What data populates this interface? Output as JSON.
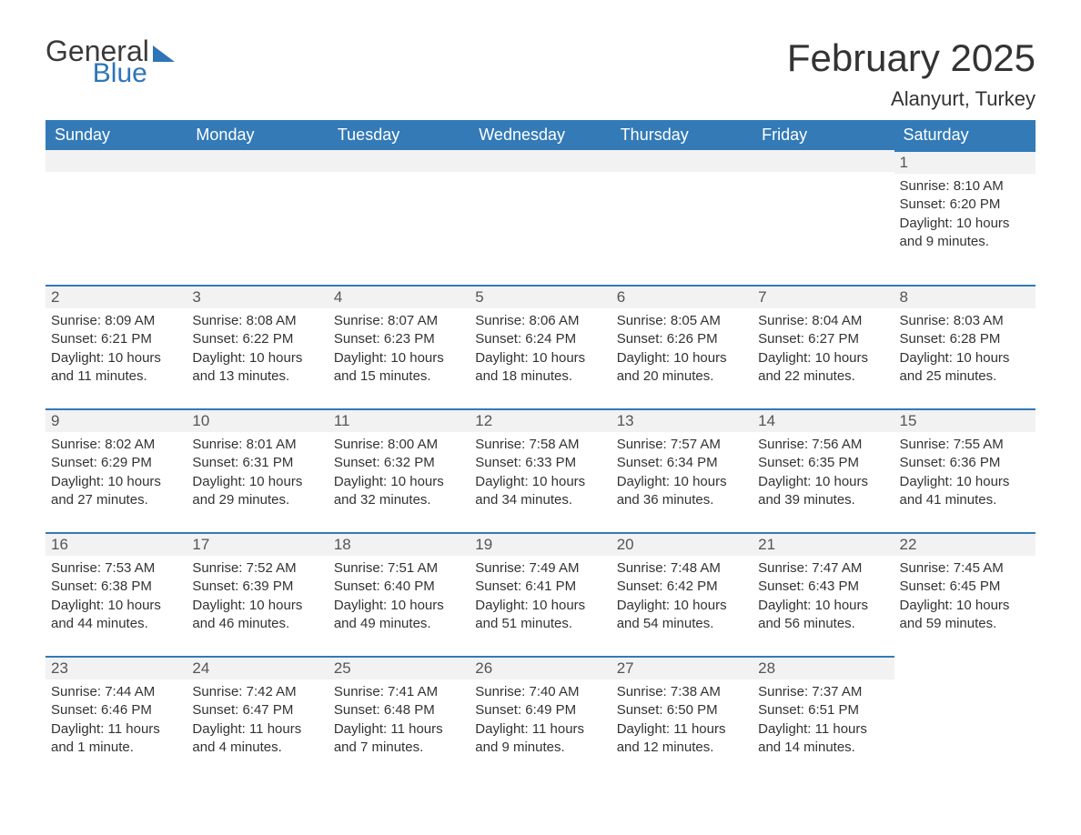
{
  "branding": {
    "logo_general": "General",
    "logo_blue": "Blue"
  },
  "header": {
    "month_title": "February 2025",
    "location": "Alanyurt, Turkey"
  },
  "style": {
    "header_bg": "#337ab7",
    "header_text": "#ffffff",
    "daynum_bg": "#f2f2f2",
    "row_border": "#337ab7",
    "body_text": "#333333",
    "logo_gray": "#3a3a3a",
    "logo_blue": "#2e75b6",
    "month_title_fontsize": 42,
    "location_fontsize": 22,
    "day_fontsize": 15
  },
  "calendar": {
    "day_names": [
      "Sunday",
      "Monday",
      "Tuesday",
      "Wednesday",
      "Thursday",
      "Friday",
      "Saturday"
    ],
    "weeks": [
      [
        null,
        null,
        null,
        null,
        null,
        null,
        {
          "n": "1",
          "sunrise": "Sunrise: 8:10 AM",
          "sunset": "Sunset: 6:20 PM",
          "daylight": "Daylight: 10 hours and 9 minutes."
        }
      ],
      [
        {
          "n": "2",
          "sunrise": "Sunrise: 8:09 AM",
          "sunset": "Sunset: 6:21 PM",
          "daylight": "Daylight: 10 hours and 11 minutes."
        },
        {
          "n": "3",
          "sunrise": "Sunrise: 8:08 AM",
          "sunset": "Sunset: 6:22 PM",
          "daylight": "Daylight: 10 hours and 13 minutes."
        },
        {
          "n": "4",
          "sunrise": "Sunrise: 8:07 AM",
          "sunset": "Sunset: 6:23 PM",
          "daylight": "Daylight: 10 hours and 15 minutes."
        },
        {
          "n": "5",
          "sunrise": "Sunrise: 8:06 AM",
          "sunset": "Sunset: 6:24 PM",
          "daylight": "Daylight: 10 hours and 18 minutes."
        },
        {
          "n": "6",
          "sunrise": "Sunrise: 8:05 AM",
          "sunset": "Sunset: 6:26 PM",
          "daylight": "Daylight: 10 hours and 20 minutes."
        },
        {
          "n": "7",
          "sunrise": "Sunrise: 8:04 AM",
          "sunset": "Sunset: 6:27 PM",
          "daylight": "Daylight: 10 hours and 22 minutes."
        },
        {
          "n": "8",
          "sunrise": "Sunrise: 8:03 AM",
          "sunset": "Sunset: 6:28 PM",
          "daylight": "Daylight: 10 hours and 25 minutes."
        }
      ],
      [
        {
          "n": "9",
          "sunrise": "Sunrise: 8:02 AM",
          "sunset": "Sunset: 6:29 PM",
          "daylight": "Daylight: 10 hours and 27 minutes."
        },
        {
          "n": "10",
          "sunrise": "Sunrise: 8:01 AM",
          "sunset": "Sunset: 6:31 PM",
          "daylight": "Daylight: 10 hours and 29 minutes."
        },
        {
          "n": "11",
          "sunrise": "Sunrise: 8:00 AM",
          "sunset": "Sunset: 6:32 PM",
          "daylight": "Daylight: 10 hours and 32 minutes."
        },
        {
          "n": "12",
          "sunrise": "Sunrise: 7:58 AM",
          "sunset": "Sunset: 6:33 PM",
          "daylight": "Daylight: 10 hours and 34 minutes."
        },
        {
          "n": "13",
          "sunrise": "Sunrise: 7:57 AM",
          "sunset": "Sunset: 6:34 PM",
          "daylight": "Daylight: 10 hours and 36 minutes."
        },
        {
          "n": "14",
          "sunrise": "Sunrise: 7:56 AM",
          "sunset": "Sunset: 6:35 PM",
          "daylight": "Daylight: 10 hours and 39 minutes."
        },
        {
          "n": "15",
          "sunrise": "Sunrise: 7:55 AM",
          "sunset": "Sunset: 6:36 PM",
          "daylight": "Daylight: 10 hours and 41 minutes."
        }
      ],
      [
        {
          "n": "16",
          "sunrise": "Sunrise: 7:53 AM",
          "sunset": "Sunset: 6:38 PM",
          "daylight": "Daylight: 10 hours and 44 minutes."
        },
        {
          "n": "17",
          "sunrise": "Sunrise: 7:52 AM",
          "sunset": "Sunset: 6:39 PM",
          "daylight": "Daylight: 10 hours and 46 minutes."
        },
        {
          "n": "18",
          "sunrise": "Sunrise: 7:51 AM",
          "sunset": "Sunset: 6:40 PM",
          "daylight": "Daylight: 10 hours and 49 minutes."
        },
        {
          "n": "19",
          "sunrise": "Sunrise: 7:49 AM",
          "sunset": "Sunset: 6:41 PM",
          "daylight": "Daylight: 10 hours and 51 minutes."
        },
        {
          "n": "20",
          "sunrise": "Sunrise: 7:48 AM",
          "sunset": "Sunset: 6:42 PM",
          "daylight": "Daylight: 10 hours and 54 minutes."
        },
        {
          "n": "21",
          "sunrise": "Sunrise: 7:47 AM",
          "sunset": "Sunset: 6:43 PM",
          "daylight": "Daylight: 10 hours and 56 minutes."
        },
        {
          "n": "22",
          "sunrise": "Sunrise: 7:45 AM",
          "sunset": "Sunset: 6:45 PM",
          "daylight": "Daylight: 10 hours and 59 minutes."
        }
      ],
      [
        {
          "n": "23",
          "sunrise": "Sunrise: 7:44 AM",
          "sunset": "Sunset: 6:46 PM",
          "daylight": "Daylight: 11 hours and 1 minute."
        },
        {
          "n": "24",
          "sunrise": "Sunrise: 7:42 AM",
          "sunset": "Sunset: 6:47 PM",
          "daylight": "Daylight: 11 hours and 4 minutes."
        },
        {
          "n": "25",
          "sunrise": "Sunrise: 7:41 AM",
          "sunset": "Sunset: 6:48 PM",
          "daylight": "Daylight: 11 hours and 7 minutes."
        },
        {
          "n": "26",
          "sunrise": "Sunrise: 7:40 AM",
          "sunset": "Sunset: 6:49 PM",
          "daylight": "Daylight: 11 hours and 9 minutes."
        },
        {
          "n": "27",
          "sunrise": "Sunrise: 7:38 AM",
          "sunset": "Sunset: 6:50 PM",
          "daylight": "Daylight: 11 hours and 12 minutes."
        },
        {
          "n": "28",
          "sunrise": "Sunrise: 7:37 AM",
          "sunset": "Sunset: 6:51 PM",
          "daylight": "Daylight: 11 hours and 14 minutes."
        },
        null
      ]
    ]
  }
}
